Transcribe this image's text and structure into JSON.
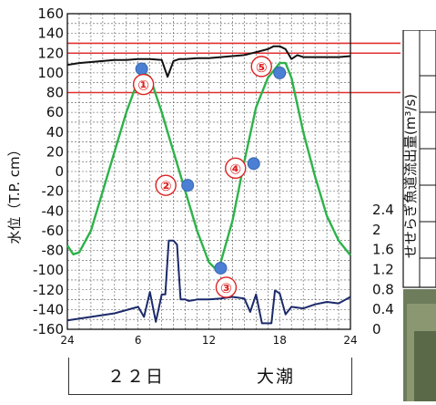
{
  "chart_data": {
    "type": "line",
    "ylabel": "水位（T.P. cm）",
    "y2label": "せせらぎ魚道流出量(m³/s)",
    "xlim": [
      0,
      24
    ],
    "ylim": [
      -160,
      160
    ],
    "y2lim": [
      0,
      2.4
    ],
    "x_ticks": [
      "24",
      "6",
      "12",
      "18",
      "24"
    ],
    "y_ticks": [
      "160",
      "140",
      "120",
      "100",
      "80",
      "60",
      "40",
      "20",
      "0",
      "-20",
      "-40",
      "-60",
      "-80",
      "-100",
      "-120",
      "-140",
      "-160"
    ],
    "y2_ticks": [
      "2.4",
      "2",
      "1.6",
      "1.2",
      "0.8",
      "0.4",
      "0"
    ],
    "reference_lines": [
      130,
      120,
      80
    ],
    "caption_day": "２２日",
    "caption_tide": "大潮",
    "series": [
      {
        "id": "black",
        "color": "#111111",
        "axis": "left",
        "x": [
          0,
          1,
          2,
          3,
          4,
          5,
          6,
          7,
          8,
          8.5,
          9,
          9.5,
          10,
          11,
          12,
          13,
          14,
          15,
          16,
          17,
          17.5,
          18,
          18.5,
          19,
          19.5,
          20,
          21,
          22,
          23,
          24
        ],
        "y": [
          108,
          110,
          111,
          112,
          113,
          113,
          114,
          114,
          113,
          96,
          112,
          114,
          114,
          115,
          115,
          116,
          117,
          118,
          121,
          124,
          127,
          127,
          124,
          114,
          118,
          116,
          116,
          116,
          116,
          117
        ]
      },
      {
        "id": "green",
        "color": "#2db24a",
        "axis": "left",
        "x": [
          0,
          0.5,
          1,
          2,
          3,
          4,
          5,
          6,
          6.5,
          7,
          8,
          9,
          10,
          11,
          12,
          12.5,
          13,
          14,
          15,
          16,
          17,
          18,
          18.5,
          19,
          20,
          21,
          22,
          23,
          24
        ],
        "y": [
          -75,
          -84,
          -82,
          -60,
          -20,
          20,
          60,
          93,
          100,
          96,
          60,
          20,
          -20,
          -60,
          -92,
          -98,
          -92,
          -50,
          10,
          65,
          95,
          110,
          110,
          95,
          40,
          -5,
          -45,
          -70,
          -85
        ]
      },
      {
        "id": "navy",
        "color": "#1b2a6b",
        "axis": "right",
        "x": [
          0,
          2,
          4,
          6,
          6.5,
          7,
          7.5,
          8,
          8.3,
          8.6,
          9,
          9.3,
          9.6,
          10,
          10.3,
          10.6,
          11,
          12,
          13,
          14,
          15,
          15.5,
          16,
          16.5,
          17,
          17.3,
          17.6,
          18,
          18.5,
          19,
          20,
          21,
          22,
          23,
          24
        ],
        "y": [
          0.18,
          0.25,
          0.32,
          0.45,
          0.25,
          0.75,
          0.15,
          0.7,
          0.7,
          1.78,
          1.78,
          1.7,
          0.6,
          0.6,
          0.57,
          0.58,
          0.6,
          0.6,
          0.62,
          0.65,
          0.62,
          0.35,
          0.7,
          0.12,
          0.12,
          0.12,
          0.78,
          0.72,
          0.3,
          0.45,
          0.42,
          0.5,
          0.55,
          0.52,
          0.65
        ]
      }
    ],
    "markers": [
      {
        "label": "①",
        "x": 6.3,
        "y": 104
      },
      {
        "label": "②",
        "x": 10.2,
        "y": -14
      },
      {
        "label": "③",
        "x": 13.0,
        "y": -98
      },
      {
        "label": "④",
        "x": 15.8,
        "y": 8
      },
      {
        "label": "⑤",
        "x": 18.0,
        "y": 100
      }
    ]
  }
}
